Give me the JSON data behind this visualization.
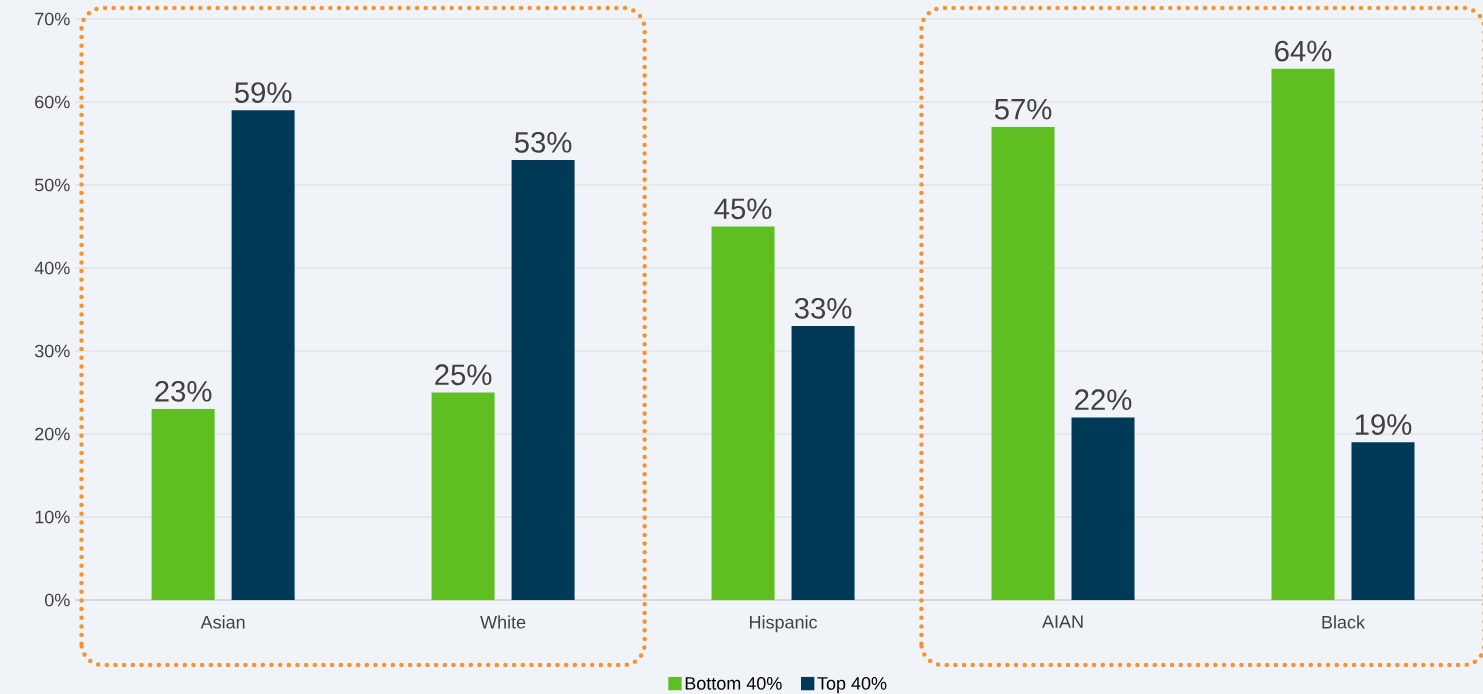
{
  "chart_data": {
    "type": "bar",
    "categories": [
      "Asian",
      "White",
      "Hispanic",
      "AIAN",
      "Black"
    ],
    "series": [
      {
        "name": "Bottom 40%",
        "color": "#5fbf22",
        "values": [
          23,
          25,
          45,
          57,
          64
        ],
        "value_labels": [
          "23%",
          "25%",
          "45%",
          "57%",
          "64%"
        ]
      },
      {
        "name": "Top 40%",
        "color": "#003a57",
        "values": [
          59,
          53,
          33,
          22,
          19
        ],
        "value_labels": [
          "59%",
          "53%",
          "33%",
          "22%",
          "19%"
        ]
      }
    ],
    "ylim": [
      0,
      70
    ],
    "yticks": [
      {
        "value": 0,
        "label": "0%"
      },
      {
        "value": 10,
        "label": "10%"
      },
      {
        "value": 20,
        "label": "20%"
      },
      {
        "value": 30,
        "label": "30%"
      },
      {
        "value": 40,
        "label": "40%"
      },
      {
        "value": 50,
        "label": "50%"
      },
      {
        "value": 60,
        "label": "60%"
      },
      {
        "value": 70,
        "label": "70%"
      }
    ],
    "grid": "y",
    "legend": "bottom"
  }
}
